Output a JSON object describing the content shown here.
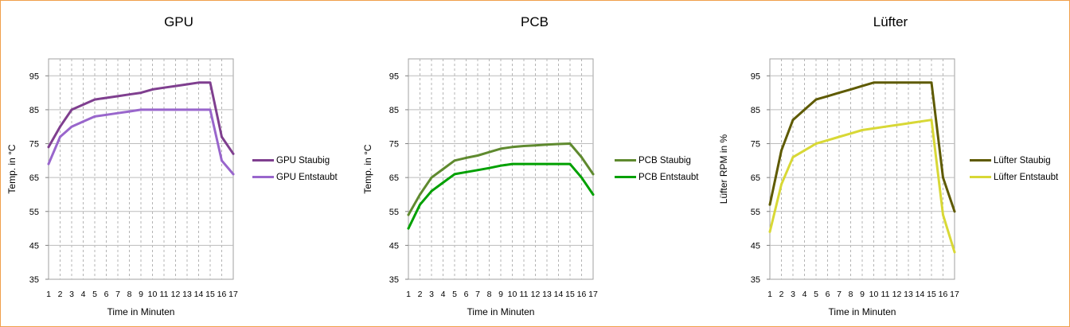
{
  "chart_data": [
    {
      "type": "line",
      "title": "GPU",
      "xlabel": "Time in Minuten",
      "ylabel": "Temp. in °C",
      "x": [
        1,
        2,
        3,
        4,
        5,
        6,
        7,
        8,
        9,
        10,
        11,
        12,
        13,
        14,
        15,
        16,
        17
      ],
      "x_tick_labels": [
        "1",
        "2",
        "3",
        "4",
        "5",
        "6",
        "7",
        "8",
        "9",
        "10",
        "11",
        "12",
        "13",
        "14",
        "15",
        "16",
        "17"
      ],
      "ylim": [
        35,
        100
      ],
      "y_ticks": [
        35,
        45,
        55,
        65,
        75,
        85,
        95
      ],
      "grid": "on",
      "legend": "right",
      "series": [
        {
          "name": "GPU Staubig",
          "color": "#7f3f8f",
          "values": [
            74,
            80,
            85,
            86.5,
            88,
            88.5,
            89,
            89.5,
            90,
            91,
            91.5,
            92,
            92.5,
            93,
            93,
            77,
            72
          ]
        },
        {
          "name": "GPU Entstaubt",
          "color": "#9966cc",
          "values": [
            69,
            77,
            80,
            81.5,
            83,
            83.5,
            84,
            84.5,
            85,
            85,
            85,
            85,
            85,
            85,
            85,
            70,
            66
          ]
        }
      ]
    },
    {
      "type": "line",
      "title": "PCB",
      "xlabel": "Time in Minuten",
      "ylabel": "Temp. in °C",
      "x": [
        1,
        2,
        3,
        4,
        5,
        6,
        7,
        8,
        9,
        10,
        11,
        12,
        13,
        14,
        15,
        16,
        17
      ],
      "x_tick_labels": [
        "1",
        "2",
        "3",
        "4",
        "5",
        "6",
        "7",
        "8",
        "9",
        "10",
        "11",
        "12",
        "13",
        "14",
        "15",
        "16",
        "17"
      ],
      "ylim": [
        35,
        100
      ],
      "y_ticks": [
        35,
        45,
        55,
        65,
        75,
        85,
        95
      ],
      "grid": "on",
      "legend": "right",
      "series": [
        {
          "name": "PCB Staubig",
          "color": "#5f8a2f",
          "values": [
            54,
            60,
            65,
            67.5,
            70,
            70.8,
            71.5,
            72.5,
            73.5,
            74,
            74.3,
            74.5,
            74.7,
            74.9,
            75,
            71,
            66
          ]
        },
        {
          "name": "PCB Entstaubt",
          "color": "#00a000",
          "values": [
            50,
            57,
            61,
            63.5,
            66,
            66.6,
            67.2,
            67.8,
            68.5,
            69,
            69,
            69,
            69,
            69,
            69,
            65,
            60
          ]
        }
      ]
    },
    {
      "type": "line",
      "title": "Lüfter",
      "xlabel": "Time in Minuten",
      "ylabel": "Lüfter RPM in %",
      "x": [
        1,
        2,
        3,
        4,
        5,
        6,
        7,
        8,
        9,
        10,
        11,
        12,
        13,
        14,
        15,
        16,
        17
      ],
      "x_tick_labels": [
        "1",
        "2",
        "3",
        "4",
        "5",
        "6",
        "7",
        "8",
        "9",
        "10",
        "11",
        "12",
        "13",
        "14",
        "15",
        "16",
        "17"
      ],
      "ylim": [
        35,
        100
      ],
      "y_ticks": [
        35,
        45,
        55,
        65,
        75,
        85,
        95
      ],
      "grid": "on",
      "legend": "right",
      "series": [
        {
          "name": "Lüfter Staubig",
          "color": "#5e5a00",
          "values": [
            57,
            73,
            82,
            85,
            88,
            89,
            90,
            91,
            92,
            93,
            93,
            93,
            93,
            93,
            93,
            65,
            55
          ]
        },
        {
          "name": "Lüfter Entstaubt",
          "color": "#d8d836",
          "values": [
            49,
            63,
            71,
            73,
            75,
            76,
            77,
            78,
            79,
            79.5,
            80,
            80.5,
            81,
            81.5,
            82,
            54,
            43
          ]
        }
      ]
    }
  ]
}
